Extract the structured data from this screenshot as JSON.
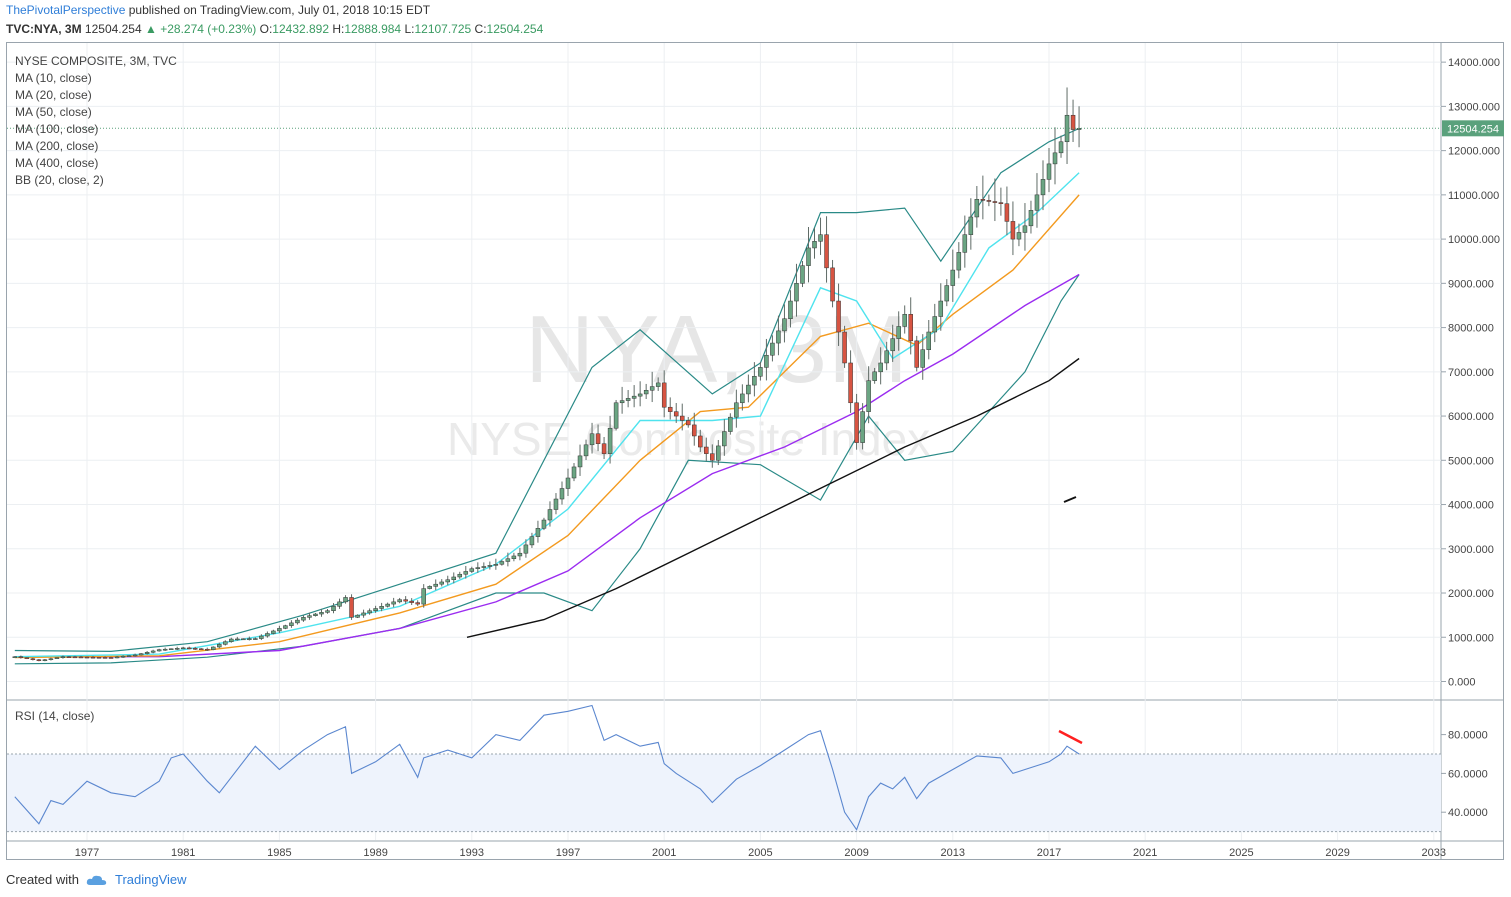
{
  "header": {
    "author": "ThePivotalPerspective",
    "published": "published on TradingView.com, July 01, 2018 10:15 EDT",
    "ticker": "TVC:NYA, 3M",
    "last": "12504.254",
    "change": "▲ +28.274 (+0.23%)",
    "open_label": "O:",
    "open": "12432.892",
    "high_label": "H:",
    "high": "12888.984",
    "low_label": "L:",
    "low": "12107.725",
    "close_label": "C:",
    "close": "12504.254"
  },
  "legend": [
    "NYSE COMPOSITE, 3M, TVC",
    "MA (10, close)",
    "MA (20, close)",
    "MA (50, close)",
    "MA (100, close)",
    "MA (200, close)",
    "MA (400, close)",
    "BB (20, close, 2)"
  ],
  "watermark": {
    "symbol": "NYA, 3M",
    "name": "NYSE Composite Index"
  },
  "rsi_label": "RSI (14, close)",
  "footer": {
    "created": "Created with",
    "brand": "TradingView"
  },
  "colors": {
    "up_candle": "#6ba583",
    "down_candle": "#d75442",
    "ma10": "#4fe3ee",
    "ma20": "#f39a1f",
    "ma50": "#9b2cf0",
    "ma200": "#111111",
    "bb": "#2a8a87",
    "rsi": "#5b87cf",
    "price_tag": "#5aa17c",
    "annotation": "#ff2020"
  },
  "chart_data": [
    {
      "type": "candlestick",
      "title": "NYSE COMPOSITE, 3M, TVC",
      "y_ticks": [
        "14000.000",
        "13000.000",
        "12000.000",
        "11000.000",
        "10000.000",
        "9000.000",
        "8000.000",
        "7000.000",
        "6000.000",
        "5000.000",
        "4000.000",
        "3000.000",
        "2000.000",
        "1000.000",
        "0.000"
      ],
      "x_ticks": [
        "1977",
        "1981",
        "1985",
        "1989",
        "1993",
        "1997",
        "2001",
        "2005",
        "2009",
        "2013",
        "2017",
        "2021",
        "2025",
        "2029",
        "2033"
      ],
      "ylim": [
        -250,
        14500
      ],
      "last_price_label": "12504.254",
      "close_path": [
        [
          1974.0,
          560
        ],
        [
          1975.0,
          470
        ],
        [
          1976.0,
          560
        ],
        [
          1977.0,
          550
        ],
        [
          1978.0,
          540
        ],
        [
          1979.0,
          600
        ],
        [
          1980.0,
          720
        ],
        [
          1981.0,
          760
        ],
        [
          1982.0,
          720
        ],
        [
          1983.0,
          960
        ],
        [
          1984.0,
          970
        ],
        [
          1985.0,
          1200
        ],
        [
          1986.0,
          1450
        ],
        [
          1987.0,
          1600
        ],
        [
          1987.75,
          1900
        ],
        [
          1988.0,
          1450
        ],
        [
          1989.0,
          1650
        ],
        [
          1990.0,
          1850
        ],
        [
          1990.75,
          1750
        ],
        [
          1991.0,
          2100
        ],
        [
          1992.0,
          2300
        ],
        [
          1993.0,
          2550
        ],
        [
          1994.0,
          2650
        ],
        [
          1995.0,
          2900
        ],
        [
          1996.0,
          3650
        ],
        [
          1997.0,
          4600
        ],
        [
          1998.0,
          5600
        ],
        [
          1998.5,
          5150
        ],
        [
          1999.0,
          6300
        ],
        [
          2000.0,
          6500
        ],
        [
          2000.75,
          6750
        ],
        [
          2001.0,
          6200
        ],
        [
          2002.0,
          5800
        ],
        [
          2002.5,
          5300
        ],
        [
          2003.0,
          5000
        ],
        [
          2004.0,
          6300
        ],
        [
          2005.0,
          7100
        ],
        [
          2006.0,
          8200
        ],
        [
          2007.0,
          9800
        ],
        [
          2007.5,
          10100
        ],
        [
          2008.0,
          8600
        ],
        [
          2008.5,
          7200
        ],
        [
          2009.0,
          5400
        ],
        [
          2009.5,
          6800
        ],
        [
          2010.0,
          7200
        ],
        [
          2011.0,
          8300
        ],
        [
          2011.5,
          7100
        ],
        [
          2012.0,
          7900
        ],
        [
          2013.0,
          9300
        ],
        [
          2014.0,
          10900
        ],
        [
          2015.0,
          10800
        ],
        [
          2015.5,
          10000
        ],
        [
          2016.0,
          10300
        ],
        [
          2017.0,
          11700
        ],
        [
          2017.5,
          12200
        ],
        [
          2017.75,
          12800
        ],
        [
          2018.0,
          12476
        ],
        [
          2018.25,
          12504
        ]
      ],
      "bb_upper": [
        [
          1974.0,
          700
        ],
        [
          1978.0,
          680
        ],
        [
          1982.0,
          900
        ],
        [
          1986.0,
          1500
        ],
        [
          1990.0,
          2200
        ],
        [
          1994.0,
          2900
        ],
        [
          1998.0,
          7100
        ],
        [
          2000.0,
          7950
        ],
        [
          2003.0,
          6500
        ],
        [
          2005.0,
          7200
        ],
        [
          2007.5,
          10600
        ],
        [
          2009.0,
          10600
        ],
        [
          2011.0,
          10700
        ],
        [
          2012.5,
          9500
        ],
        [
          2015.0,
          11500
        ],
        [
          2017.0,
          12200
        ],
        [
          2018.25,
          12500
        ]
      ],
      "bb_lower": [
        [
          1974.0,
          400
        ],
        [
          1978.0,
          420
        ],
        [
          1982.0,
          550
        ],
        [
          1986.0,
          800
        ],
        [
          1990.0,
          1200
        ],
        [
          1994.0,
          2000
        ],
        [
          1996.0,
          2000
        ],
        [
          1998.0,
          1600
        ],
        [
          2000.0,
          3000
        ],
        [
          2002.0,
          5000
        ],
        [
          2005.0,
          4900
        ],
        [
          2007.5,
          4100
        ],
        [
          2009.5,
          6000
        ],
        [
          2011.0,
          5000
        ],
        [
          2013.0,
          5200
        ],
        [
          2016.0,
          7000
        ],
        [
          2017.5,
          8600
        ],
        [
          2018.25,
          9200
        ]
      ],
      "ma10": [
        [
          1974.0,
          560
        ],
        [
          1980.0,
          620
        ],
        [
          1985.0,
          1100
        ],
        [
          1990.0,
          1700
        ],
        [
          1994.0,
          2650
        ],
        [
          1997.0,
          3900
        ],
        [
          2000.0,
          5900
        ],
        [
          2003.0,
          5900
        ],
        [
          2005.0,
          6000
        ],
        [
          2007.5,
          8900
        ],
        [
          2009.0,
          8600
        ],
        [
          2010.5,
          7300
        ],
        [
          2012.5,
          8000
        ],
        [
          2014.5,
          9800
        ],
        [
          2016.5,
          10600
        ],
        [
          2018.25,
          11500
        ]
      ],
      "ma20": [
        [
          1974.0,
          540
        ],
        [
          1980.0,
          580
        ],
        [
          1985.0,
          900
        ],
        [
          1990.0,
          1550
        ],
        [
          1994.0,
          2200
        ],
        [
          1997.0,
          3300
        ],
        [
          2000.0,
          5000
        ],
        [
          2002.5,
          6100
        ],
        [
          2004.5,
          6200
        ],
        [
          2007.5,
          7800
        ],
        [
          2009.5,
          8100
        ],
        [
          2011.5,
          7600
        ],
        [
          2013.0,
          8300
        ],
        [
          2015.5,
          9300
        ],
        [
          2018.25,
          11000
        ]
      ],
      "ma50": [
        [
          1974.0,
          560
        ],
        [
          1980.0,
          560
        ],
        [
          1985.0,
          700
        ],
        [
          1990.0,
          1200
        ],
        [
          1994.0,
          1800
        ],
        [
          1997.0,
          2500
        ],
        [
          2000.0,
          3700
        ],
        [
          2003.0,
          4700
        ],
        [
          2006.0,
          5300
        ],
        [
          2009.0,
          6100
        ],
        [
          2011.0,
          6800
        ],
        [
          2013.0,
          7400
        ],
        [
          2016.0,
          8500
        ],
        [
          2018.25,
          9200
        ]
      ],
      "ma200": [
        [
          1992.8,
          1000
        ],
        [
          1996.0,
          1400
        ],
        [
          1999.0,
          2100
        ],
        [
          2002.0,
          2900
        ],
        [
          2005.0,
          3700
        ],
        [
          2008.0,
          4500
        ],
        [
          2011.0,
          5300
        ],
        [
          2014.0,
          6000
        ],
        [
          2017.0,
          6800
        ],
        [
          2018.25,
          7300
        ]
      ]
    },
    {
      "type": "line",
      "title": "RSI (14, close)",
      "y_ticks": [
        "80.0000",
        "60.0000",
        "40.0000"
      ],
      "ylim": [
        27,
        100
      ],
      "band": [
        30,
        70
      ],
      "x": [
        1974.0,
        1975.0,
        1975.5,
        1976.0,
        1977.0,
        1978.0,
        1979.0,
        1980.0,
        1980.5,
        1981.0,
        1982.0,
        1982.5,
        1983.0,
        1984.0,
        1985.0,
        1986.0,
        1987.0,
        1987.75,
        1988.0,
        1989.0,
        1990.0,
        1990.75,
        1991.0,
        1992.0,
        1993.0,
        1994.0,
        1995.0,
        1996.0,
        1997.0,
        1998.0,
        1998.5,
        1999.0,
        2000.0,
        2000.75,
        2001.0,
        2001.5,
        2002.0,
        2002.5,
        2003.0,
        2004.0,
        2005.0,
        2006.0,
        2007.0,
        2007.5,
        2008.0,
        2008.5,
        2009.0,
        2009.5,
        2010.0,
        2010.5,
        2011.0,
        2011.5,
        2012.0,
        2013.0,
        2014.0,
        2015.0,
        2015.5,
        2016.0,
        2017.0,
        2017.5,
        2017.75,
        2018.0,
        2018.25
      ],
      "values": [
        48,
        34,
        46,
        44,
        56,
        50,
        48,
        56,
        68,
        70,
        56,
        50,
        58,
        74,
        62,
        72,
        80,
        84,
        60,
        66,
        75,
        58,
        68,
        72,
        68,
        80,
        77,
        90,
        92,
        95,
        77,
        80,
        74,
        76,
        65,
        60,
        56,
        52,
        45,
        57,
        64,
        72,
        80,
        82,
        62,
        40,
        31,
        48,
        55,
        52,
        58,
        47,
        55,
        62,
        69,
        68,
        60,
        62,
        66,
        70,
        74,
        72,
        70
      ]
    }
  ]
}
